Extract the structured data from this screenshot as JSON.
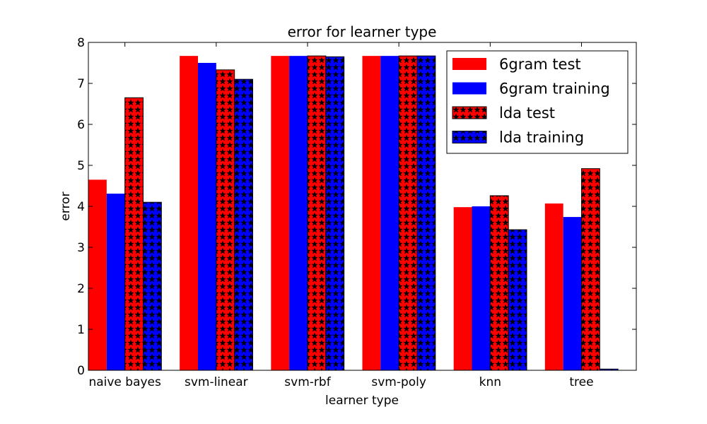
{
  "chart_data": {
    "type": "bar",
    "title": "error for learner type",
    "xlabel": "learner type",
    "ylabel": "error",
    "ylim": [
      0,
      8
    ],
    "yticks": [
      0,
      1,
      2,
      3,
      4,
      5,
      6,
      7,
      8
    ],
    "grid": false,
    "legend_position": "top-right",
    "categories": [
      "naive bayes",
      "svm-linear",
      "svm-rbf",
      "svm-poly",
      "knn",
      "tree"
    ],
    "series": [
      {
        "name": "6gram test",
        "color": "#ff0000",
        "pattern": "solid",
        "values": [
          4.65,
          7.67,
          7.67,
          7.67,
          3.98,
          4.07
        ]
      },
      {
        "name": "6gram training",
        "color": "#0000ff",
        "pattern": "solid",
        "values": [
          4.31,
          7.5,
          7.67,
          7.67,
          4.0,
          3.74
        ]
      },
      {
        "name": "lda test",
        "color": "#ff0000",
        "pattern": "stars",
        "values": [
          6.65,
          7.33,
          7.67,
          7.67,
          4.26,
          4.92
        ]
      },
      {
        "name": "lda training",
        "color": "#0000ff",
        "pattern": "stars",
        "values": [
          4.1,
          7.1,
          7.65,
          7.67,
          3.43,
          0.03
        ]
      }
    ]
  }
}
